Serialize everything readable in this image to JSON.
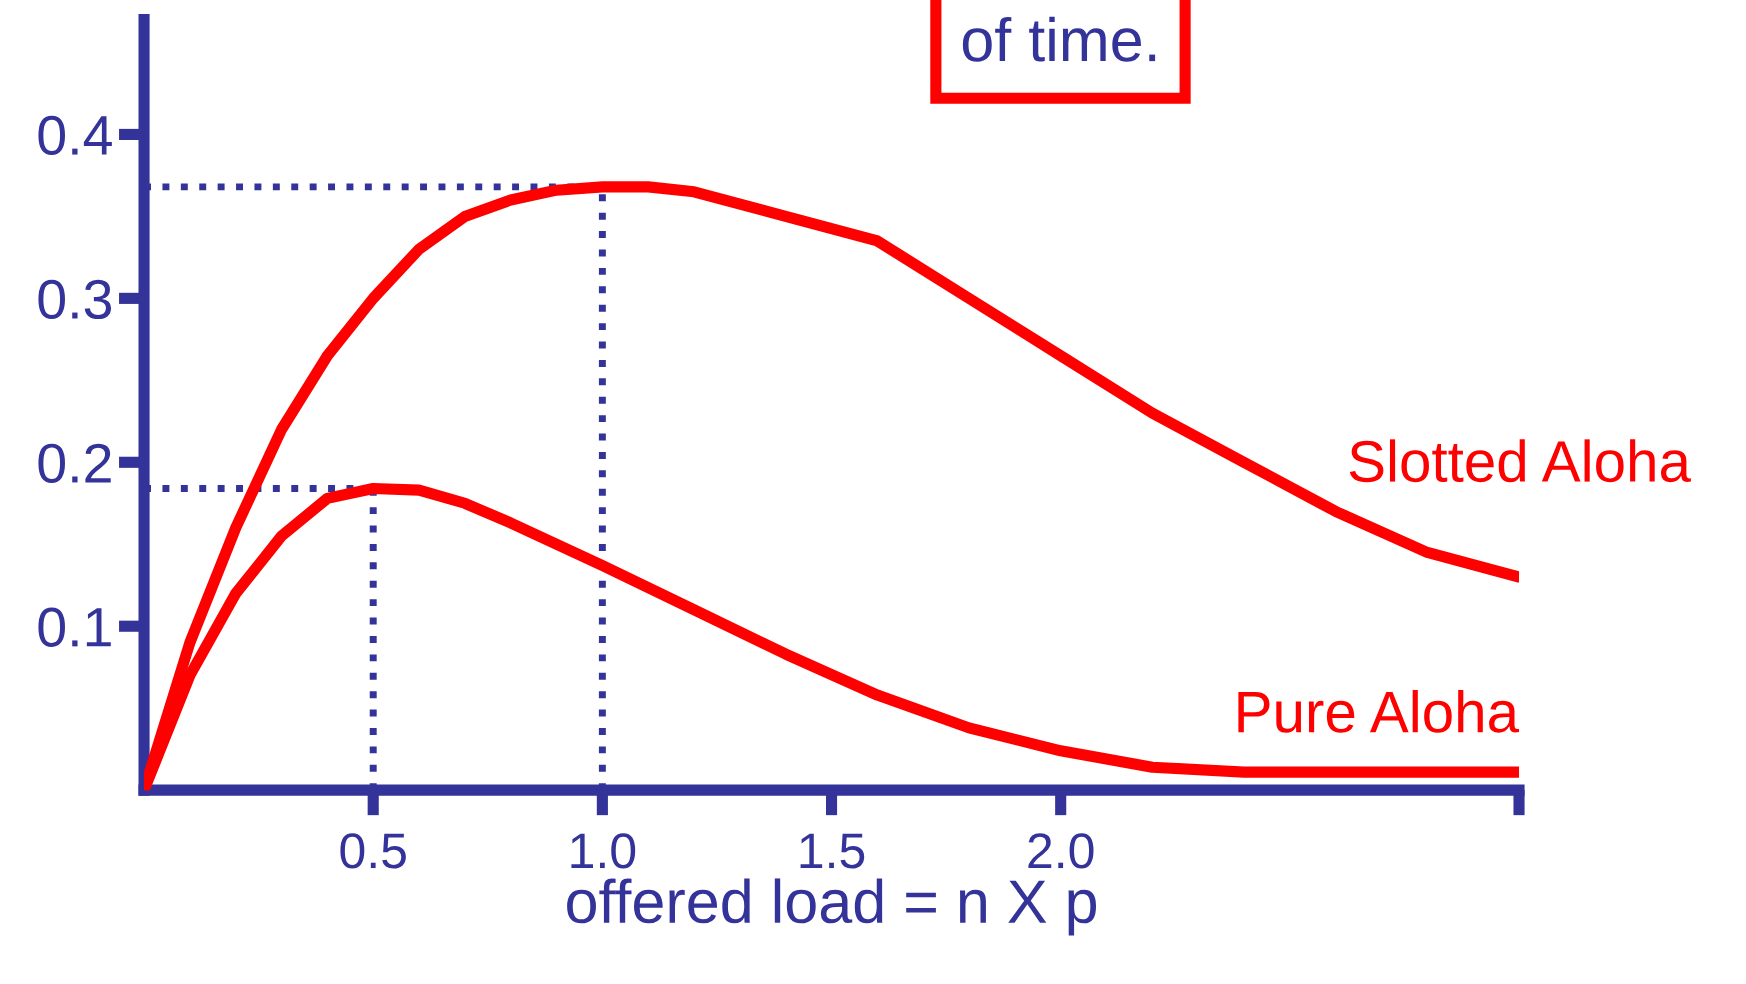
{
  "chart_data": {
    "type": "line",
    "xlabel": "offered load = n X p",
    "annotations": [
      "of time."
    ],
    "xlim": [
      0,
      3.0
    ],
    "ylim": [
      0,
      0.47
    ],
    "xticks": [
      {
        "value": 0.5,
        "label": "0.5"
      },
      {
        "value": 1.0,
        "label": "1.0"
      },
      {
        "value": 1.5,
        "label": "1.5"
      },
      {
        "value": 2.0,
        "label": "2.0"
      },
      {
        "value": 3.0,
        "label": null
      }
    ],
    "yticks": [
      0.1,
      0.2,
      0.3,
      0.4
    ],
    "grid": false,
    "legend": false,
    "marker": "none",
    "line_style": "solid",
    "ref_lines": [
      {
        "axis": "y",
        "value": 0.368,
        "label": null,
        "color": "#333399",
        "line_style": "dotted"
      },
      {
        "axis": "y",
        "value": 0.184,
        "label": null,
        "color": "#333399",
        "line_style": "dotted"
      },
      {
        "axis": "x",
        "value": 1.0,
        "label": null,
        "color": "#333399",
        "line_style": "dotted"
      },
      {
        "axis": "x",
        "value": 0.5,
        "label": null,
        "color": "#333399",
        "line_style": "dotted"
      }
    ],
    "series": [
      {
        "name": "Slotted Aloha",
        "color": "#ff0000",
        "x": [
          0,
          0.1,
          0.2,
          0.3,
          0.4,
          0.5,
          0.6,
          0.7,
          0.8,
          0.9,
          1.0,
          1.1,
          1.2,
          1.4,
          1.6,
          1.8,
          2.0,
          2.2,
          2.4,
          2.6,
          2.8,
          3.0
        ],
        "values": [
          0,
          0.09,
          0.16,
          0.22,
          0.265,
          0.3,
          0.33,
          0.35,
          0.36,
          0.366,
          0.368,
          0.368,
          0.365,
          0.35,
          0.335,
          0.3,
          0.265,
          0.23,
          0.2,
          0.17,
          0.145,
          0.13
        ]
      },
      {
        "name": "Pure Aloha",
        "color": "#ff0000",
        "x": [
          0,
          0.1,
          0.2,
          0.3,
          0.4,
          0.5,
          0.6,
          0.7,
          0.8,
          0.9,
          1.0,
          1.2,
          1.4,
          1.6,
          1.8,
          2.0,
          2.2,
          2.4,
          3.0
        ],
        "values": [
          0,
          0.07,
          0.12,
          0.155,
          0.178,
          0.184,
          0.183,
          0.175,
          0.163,
          0.15,
          0.137,
          0.11,
          0.083,
          0.058,
          0.038,
          0.024,
          0.014,
          0.011,
          0.011
        ]
      }
    ]
  }
}
